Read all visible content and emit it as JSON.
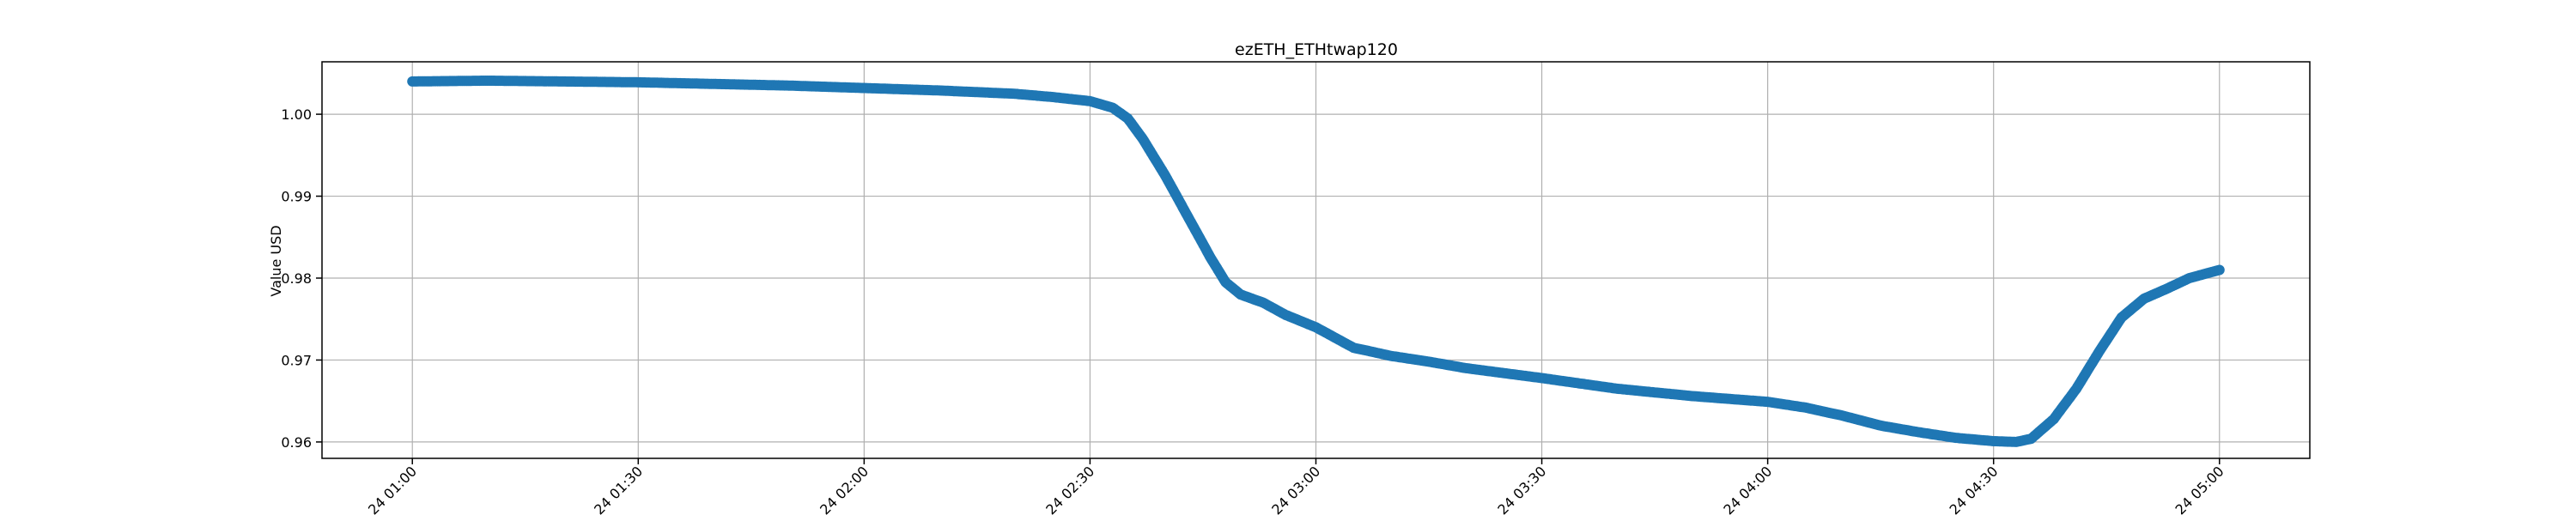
{
  "chart_data": {
    "type": "scatter",
    "title": "ezETH_ETHtwap120",
    "xlabel": "",
    "ylabel": "Value USD",
    "color": "#1f77b4",
    "grid": true,
    "legend": "none",
    "xlim": [
      "24 00:48",
      "24 05:12"
    ],
    "ylim": [
      0.958,
      1.0064
    ],
    "x_ticks": [
      "24 01:00",
      "24 01:30",
      "24 02:00",
      "24 02:30",
      "24 03:00",
      "24 03:30",
      "24 04:00",
      "24 04:30",
      "24 05:00"
    ],
    "y_ticks": [
      0.96,
      0.97,
      0.98,
      0.99,
      1.0
    ],
    "y_tick_labels": [
      "0.96",
      "0.97",
      "0.98",
      "0.99",
      "1.00"
    ],
    "series": [
      {
        "x": [
          "24 01:00",
          "24 01:10",
          "24 01:20",
          "24 01:30",
          "24 01:40",
          "24 01:50",
          "24 02:00",
          "24 02:10",
          "24 02:20",
          "24 02:25",
          "24 02:30",
          "24 02:33",
          "24 02:35",
          "24 02:37",
          "24 02:40",
          "24 02:43",
          "24 02:46",
          "24 02:48",
          "24 02:50",
          "24 02:53",
          "24 02:56",
          "24 03:00",
          "24 03:05",
          "24 03:10",
          "24 03:15",
          "24 03:20",
          "24 03:30",
          "24 03:40",
          "24 03:50",
          "24 04:00",
          "24 04:05",
          "24 04:10",
          "24 04:15",
          "24 04:20",
          "24 04:25",
          "24 04:30",
          "24 04:33",
          "24 04:35",
          "24 04:38",
          "24 04:41",
          "24 04:44",
          "24 04:47",
          "24 04:50",
          "24 04:53",
          "24 04:56",
          "24 05:00"
        ],
        "y": [
          1.004,
          1.0041,
          1.004,
          1.0039,
          1.0037,
          1.0035,
          1.0032,
          1.0029,
          1.0025,
          1.0021,
          1.0016,
          1.0008,
          0.9995,
          0.997,
          0.9925,
          0.9875,
          0.9825,
          0.9795,
          0.978,
          0.977,
          0.9755,
          0.974,
          0.9715,
          0.9705,
          0.9698,
          0.969,
          0.9678,
          0.9665,
          0.9656,
          0.9649,
          0.9642,
          0.9632,
          0.962,
          0.9612,
          0.9605,
          0.9601,
          0.96,
          0.9604,
          0.9628,
          0.9665,
          0.971,
          0.9752,
          0.9775,
          0.9787,
          0.98,
          0.981
        ]
      }
    ]
  }
}
